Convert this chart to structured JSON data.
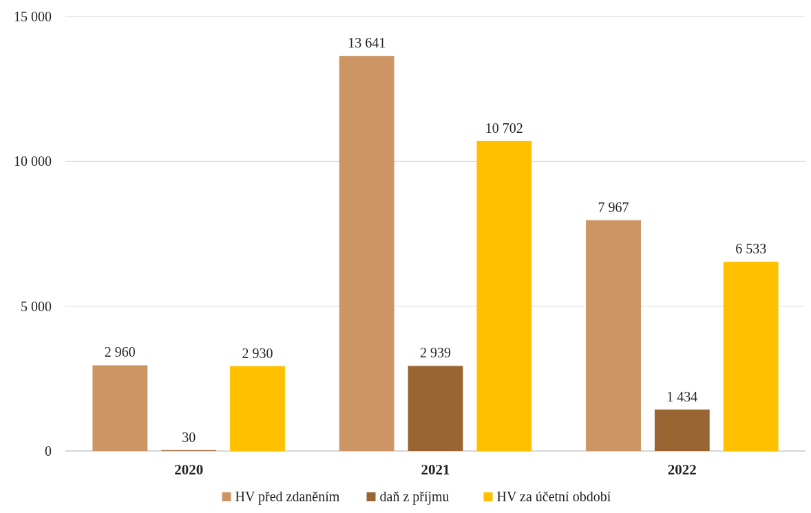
{
  "chart_data": {
    "type": "bar",
    "categories": [
      "2020",
      "2021",
      "2022"
    ],
    "series": [
      {
        "name": "HV před zdaněním",
        "color": "#cc9563",
        "values": [
          2960,
          13641,
          7967
        ],
        "value_labels": [
          "2 960",
          "13 641",
          "7 967"
        ]
      },
      {
        "name": "daň z příjmu",
        "color": "#996633",
        "values": [
          30,
          2939,
          1434
        ],
        "value_labels": [
          "30",
          "2 939",
          "1 434"
        ]
      },
      {
        "name": "HV za účetní období",
        "color": "#ffc000",
        "values": [
          2930,
          10702,
          6533
        ],
        "value_labels": [
          "2 930",
          "10 702",
          "6 533"
        ]
      }
    ],
    "ylim": [
      0,
      15000
    ],
    "yticks": [
      0,
      {
        "value": 5000,
        "label": "5 000"
      },
      {
        "value": 10000,
        "label": "10 000"
      },
      {
        "value": 15000,
        "label": "15 000"
      }
    ],
    "grid": "y",
    "legend": "bottom"
  }
}
